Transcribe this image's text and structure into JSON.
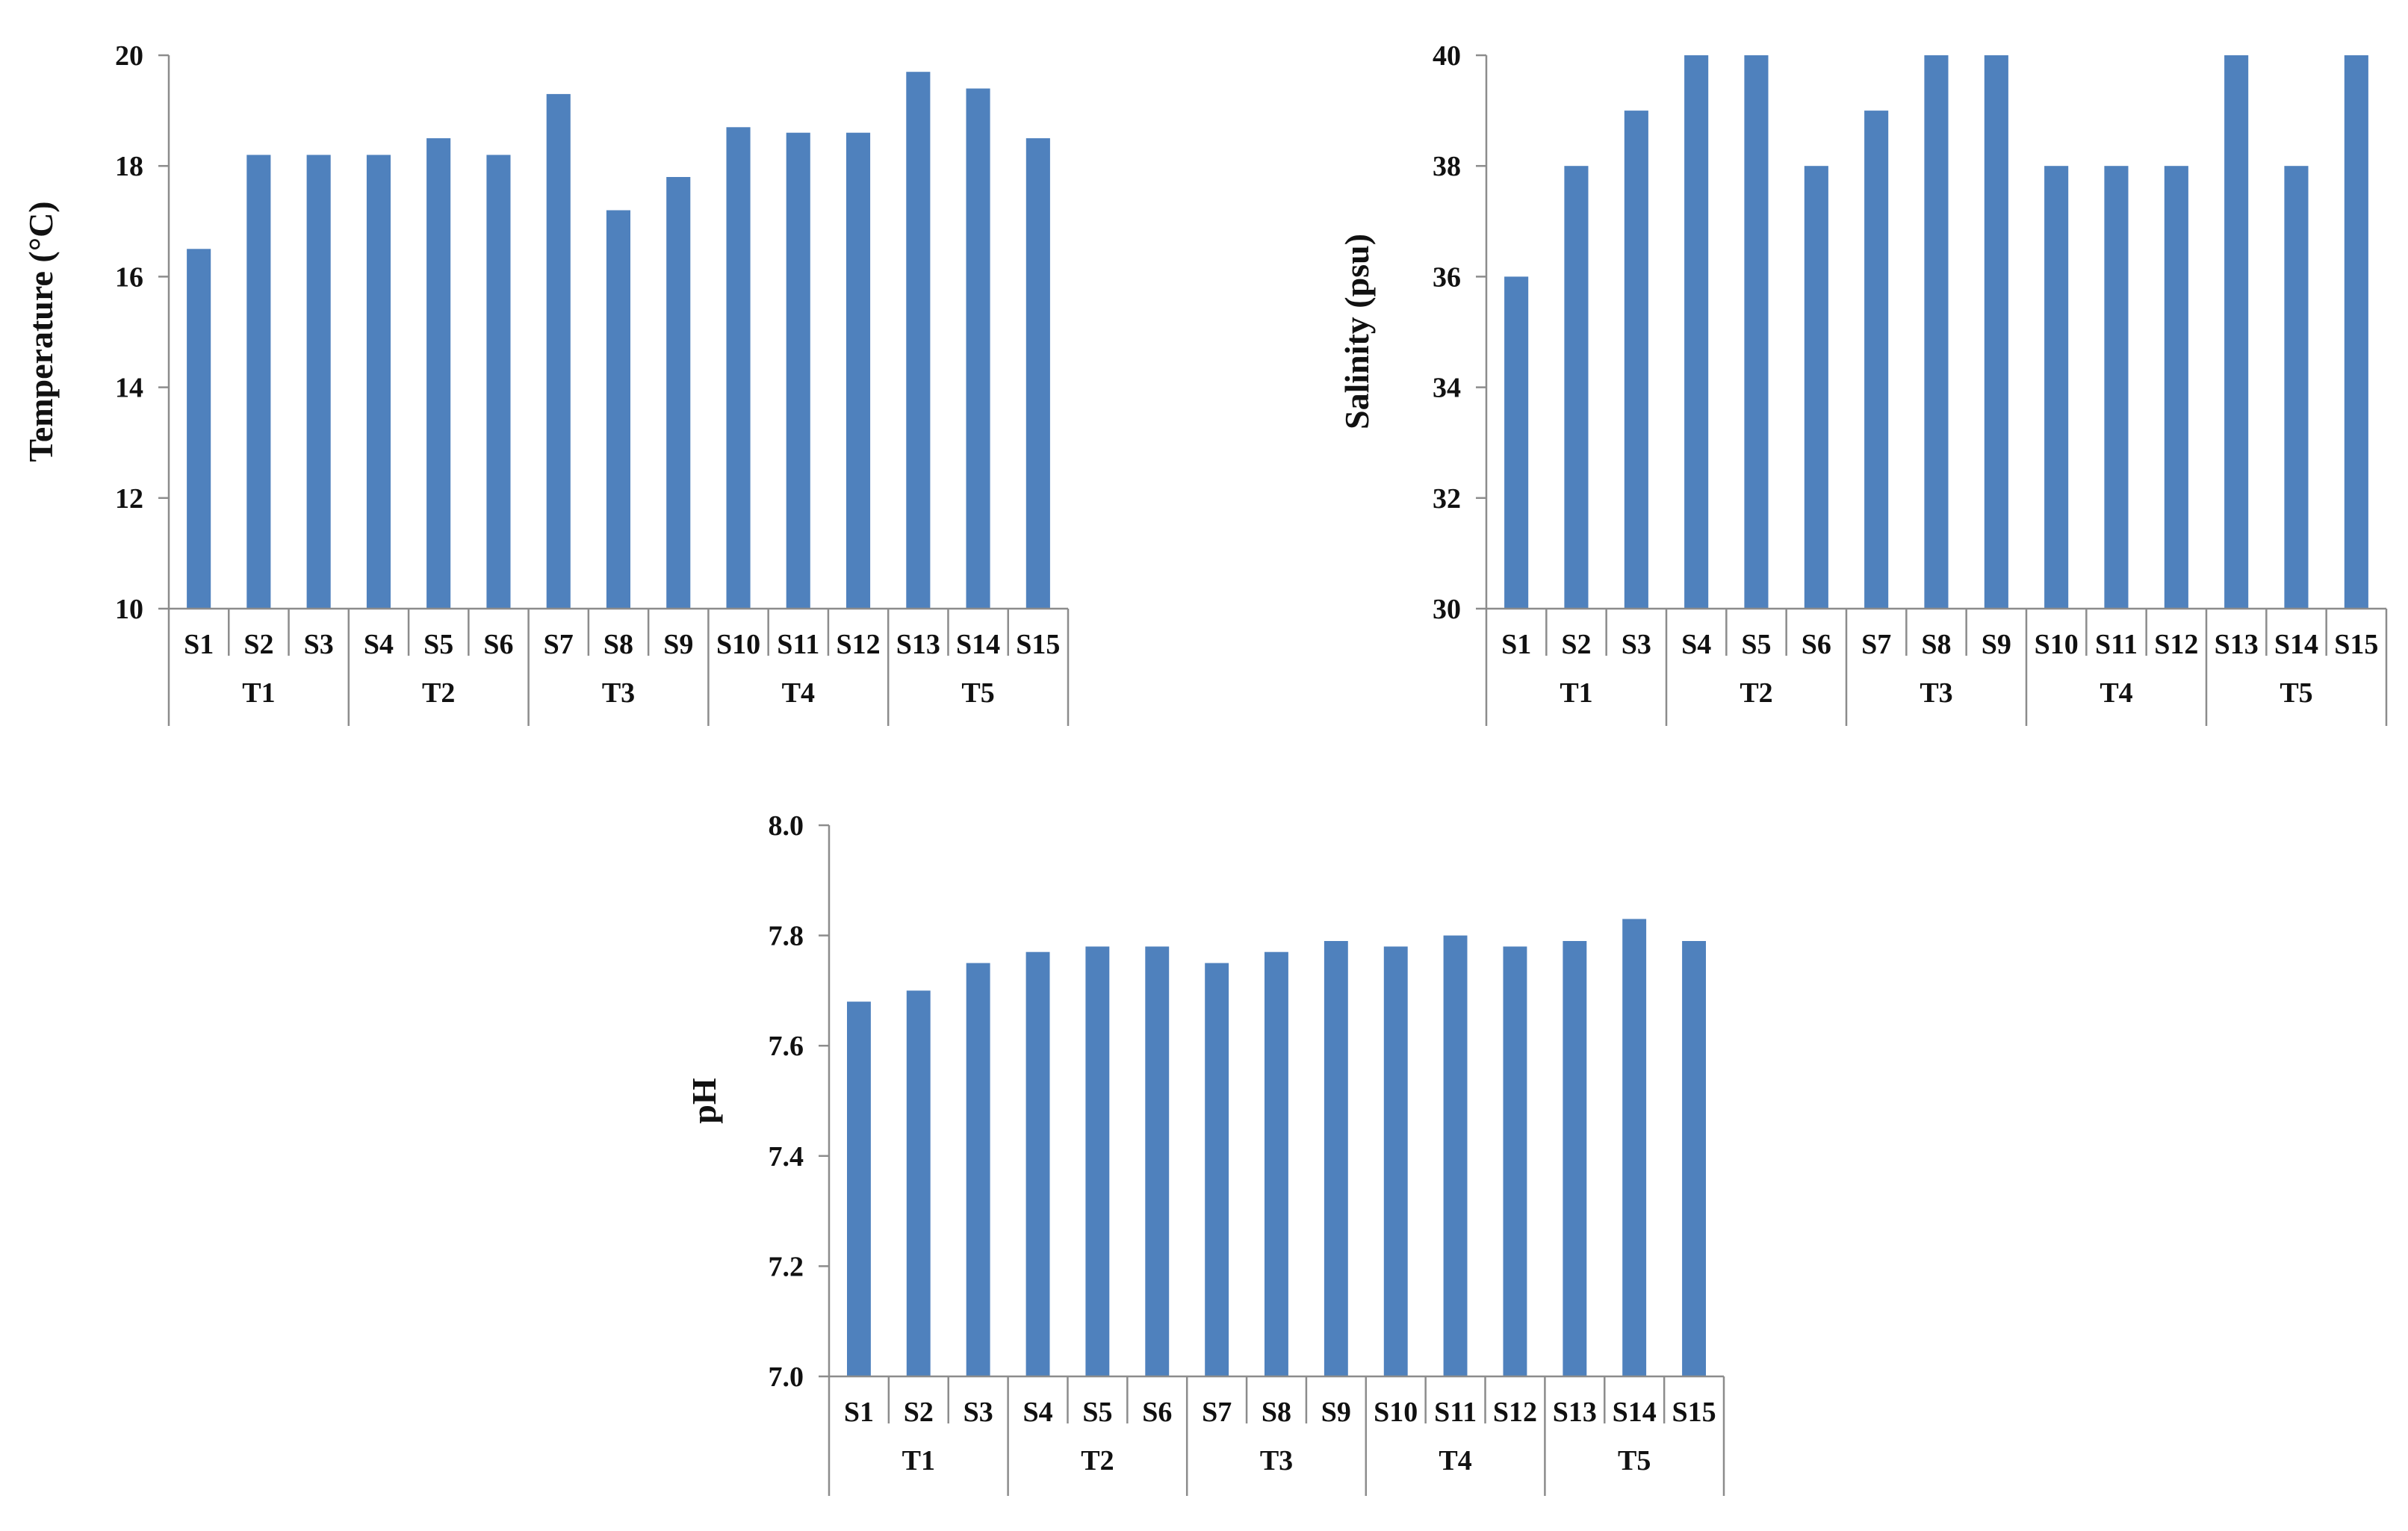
{
  "colors": {
    "bar": "#4F81BD",
    "axis": "#8C8C8C",
    "text": "#111111",
    "background": "#FFFFFF"
  },
  "chart_data": [
    {
      "type": "bar",
      "ylabel": "Temperature  (°C)",
      "ylim": [
        10,
        20
      ],
      "yticks": [
        "10",
        "12",
        "14",
        "16",
        "18",
        "20"
      ],
      "categories": [
        "S1",
        "S2",
        "S3",
        "S4",
        "S5",
        "S6",
        "S7",
        "S8",
        "S9",
        "S10",
        "S11",
        "S12",
        "S13",
        "S14",
        "S15"
      ],
      "groups": [
        "T1",
        "T2",
        "T3",
        "T4",
        "T5"
      ],
      "values": [
        16.5,
        18.2,
        18.2,
        18.2,
        18.5,
        18.2,
        19.3,
        17.2,
        17.8,
        18.7,
        18.6,
        18.6,
        19.7,
        19.4,
        18.5
      ],
      "grid": false,
      "legend": "none"
    },
    {
      "type": "bar",
      "ylabel": "Salinity  (psu)",
      "ylim": [
        30,
        40
      ],
      "yticks": [
        "30",
        "32",
        "34",
        "36",
        "38",
        "40"
      ],
      "categories": [
        "S1",
        "S2",
        "S3",
        "S4",
        "S5",
        "S6",
        "S7",
        "S8",
        "S9",
        "S10",
        "S11",
        "S12",
        "S13",
        "S14",
        "S15"
      ],
      "groups": [
        "T1",
        "T2",
        "T3",
        "T4",
        "T5"
      ],
      "values": [
        36,
        38,
        39,
        40,
        40,
        38,
        39,
        40,
        40,
        38,
        38,
        38,
        40,
        38,
        40
      ],
      "grid": false,
      "legend": "none"
    },
    {
      "type": "bar",
      "ylabel": "pH",
      "ylim": [
        7.0,
        8.0
      ],
      "yticks": [
        "7.0",
        "7.2",
        "7.4",
        "7.6",
        "7.8",
        "8.0"
      ],
      "categories": [
        "S1",
        "S2",
        "S3",
        "S4",
        "S5",
        "S6",
        "S7",
        "S8",
        "S9",
        "S10",
        "S11",
        "S12",
        "S13",
        "S14",
        "S15"
      ],
      "groups": [
        "T1",
        "T2",
        "T3",
        "T4",
        "T5"
      ],
      "values": [
        7.68,
        7.7,
        7.75,
        7.77,
        7.78,
        7.78,
        7.75,
        7.77,
        7.79,
        7.78,
        7.8,
        7.78,
        7.79,
        7.83,
        7.79
      ],
      "grid": false,
      "legend": "none"
    }
  ]
}
